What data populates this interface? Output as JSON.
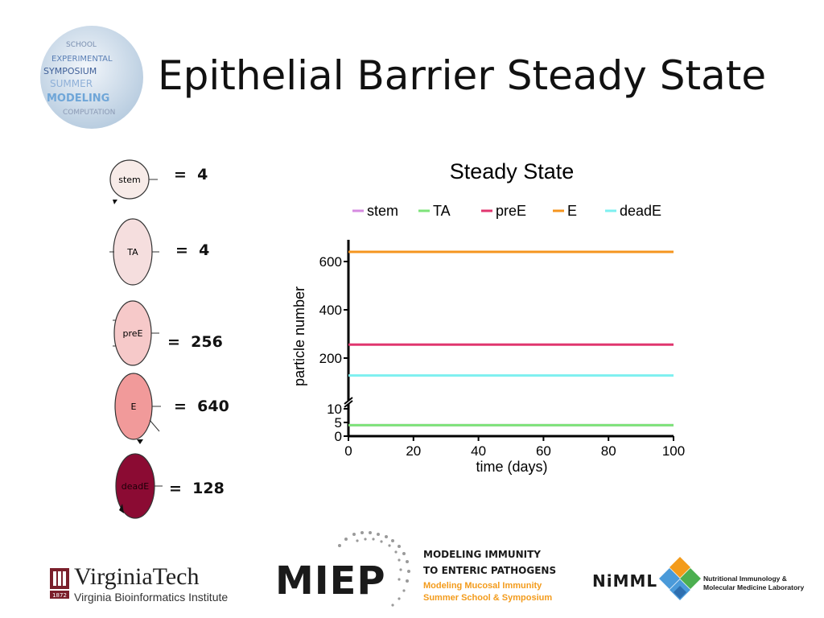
{
  "slide": {
    "title": "Epithelial Barrier Steady State"
  },
  "agents": [
    {
      "label": "stem",
      "count_text": "=  4",
      "fill": "#f7ebe8"
    },
    {
      "label": "TA",
      "count_text": "=  4",
      "fill": "#f5dede"
    },
    {
      "label": "preE",
      "count_text": "=  256",
      "fill": "#f6c9c9"
    },
    {
      "label": "E",
      "count_text": "=  640",
      "fill": "#f19a9a"
    },
    {
      "label": "deadE",
      "count_text": "=  128",
      "fill": "#8b0b33"
    }
  ],
  "chart_data": {
    "type": "line",
    "title": "Steady State",
    "xlabel": "time (days)",
    "ylabel": "particle number",
    "x": [
      0,
      100
    ],
    "xlim": [
      0,
      100
    ],
    "x_ticks": [
      "0",
      "20",
      "40",
      "60",
      "80",
      "100"
    ],
    "y_ticks_lower": [
      "0",
      "5",
      "10"
    ],
    "y_ticks_upper": [
      "200",
      "400",
      "600"
    ],
    "axis_break": true,
    "legend_position": "top",
    "series": [
      {
        "name": "stem",
        "values": [
          4,
          4
        ],
        "color": "#d68be0"
      },
      {
        "name": "TA",
        "values": [
          4,
          4
        ],
        "color": "#7ee37a"
      },
      {
        "name": "preE",
        "values": [
          256,
          256
        ],
        "color": "#e0366f"
      },
      {
        "name": "E",
        "values": [
          640,
          640
        ],
        "color": "#f5951f"
      },
      {
        "name": "deadE",
        "values": [
          128,
          128
        ],
        "color": "#7ef0f0"
      }
    ]
  },
  "footer": {
    "vt_name": "VirginiaTech",
    "vt_institute": "Virginia Bioinformatics Institute",
    "vt_seal_text": "1872",
    "miep_word": "MIEP",
    "miep_line1": "MODELING IMMUNITY",
    "miep_line2": "TO ENTERIC PATHOGENS",
    "miep_line3": "Modeling Mucosal Immunity",
    "miep_line4": "Summer School & Symposium",
    "nimml_word": "NiMML",
    "nimml_sub1": "Nutritional Immunology &",
    "nimml_sub2": "Molecular Medicine Laboratory"
  },
  "logo": {
    "globe_words": [
      "SCHOOL",
      "EXPERIMENTAL",
      "SYMPOSIUM",
      "SUMMER",
      "MODELING",
      "COMPUTATION"
    ]
  }
}
